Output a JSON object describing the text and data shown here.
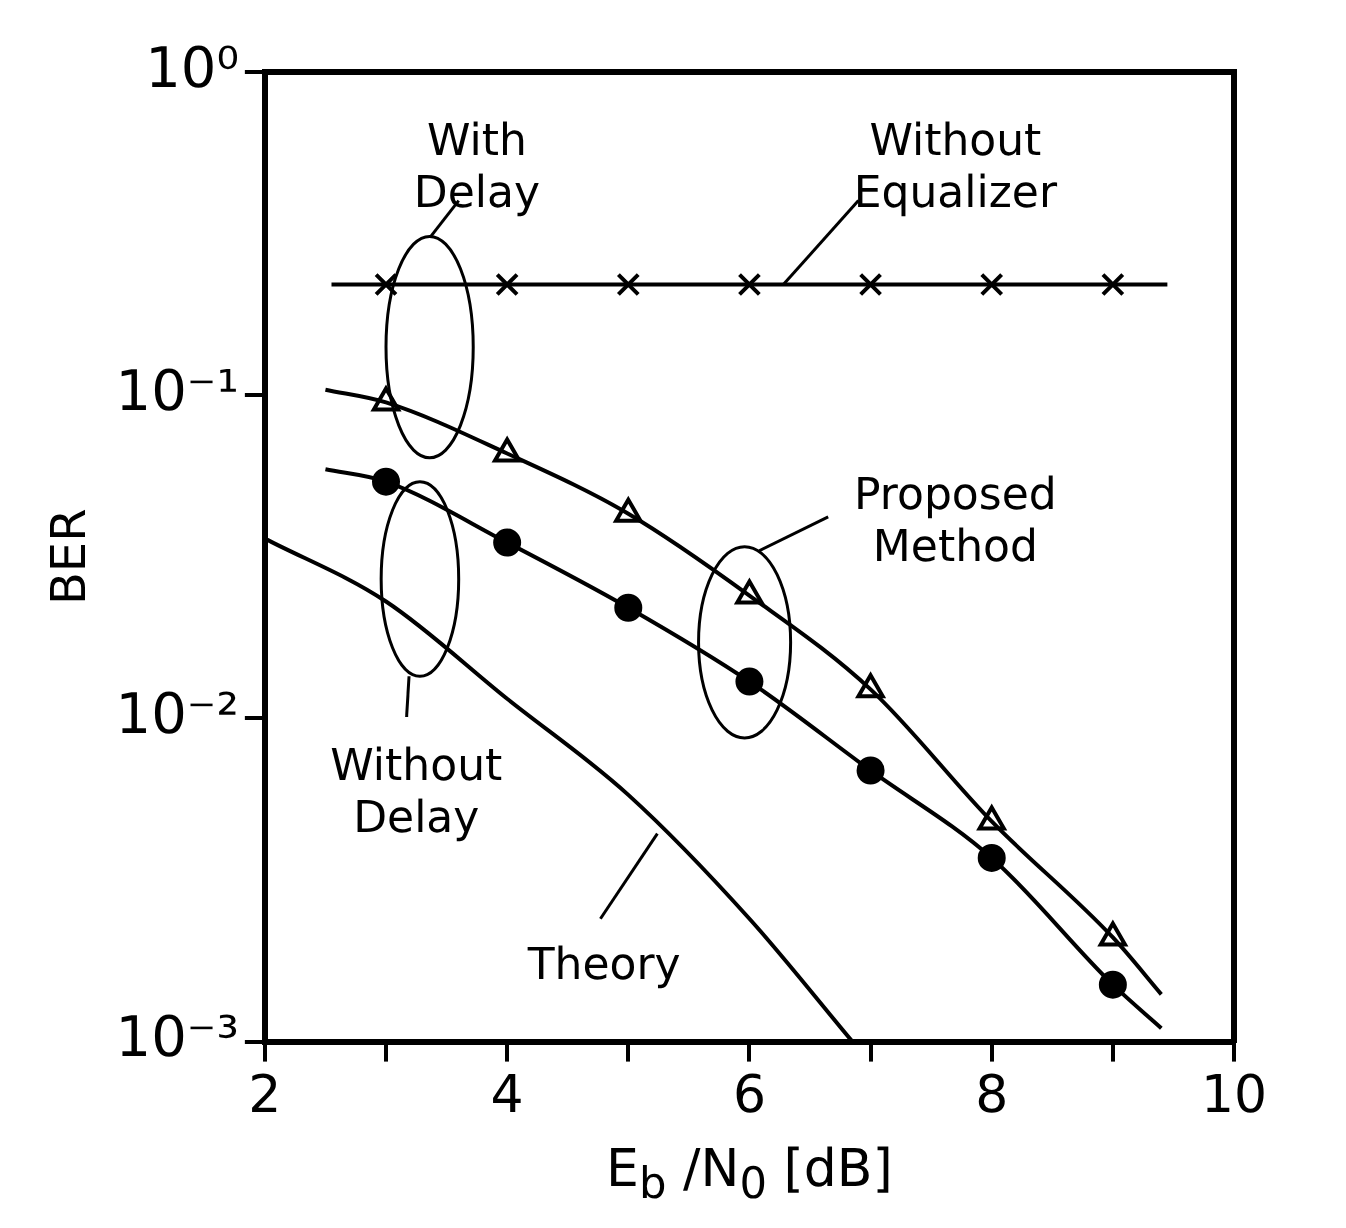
{
  "chart_data": {
    "type": "line",
    "xlabel": "E$_{b}$ /N$_{0}$  [dB]",
    "ylabel": "BER",
    "log": "y",
    "grid": false,
    "legend": false,
    "xlim": [
      2,
      10
    ],
    "xticks": [
      2,
      {
        "value": 3,
        "label": null
      },
      4,
      {
        "value": 5,
        "label": null
      },
      6,
      {
        "value": 7,
        "label": null
      },
      8,
      {
        "value": 9,
        "label": null
      },
      10
    ],
    "ylim": [
      0.001,
      1
    ],
    "yticks": [
      {
        "value": 1,
        "label": "10⁰"
      },
      {
        "value": 0.1,
        "label": "10⁻¹"
      },
      {
        "value": 0.01,
        "label": "10⁻²"
      },
      {
        "value": 0.001,
        "label": "10⁻³"
      }
    ],
    "series": [
      {
        "color": "#000000",
        "marker": "none",
        "x": [
          2.55,
          9.45
        ],
        "values": [
          0.22,
          0.22
        ]
      },
      {
        "type": "scatter",
        "color": "#000000",
        "marker": "cross",
        "x": [
          3,
          4,
          5,
          6,
          7,
          8,
          9
        ],
        "values": [
          0.22,
          0.22,
          0.22,
          0.22,
          0.22,
          0.22,
          0.22
        ]
      },
      {
        "color": "#000000",
        "marker": "none",
        "x": [
          2.5,
          3,
          4,
          5,
          6,
          7,
          8,
          9,
          9.4
        ],
        "values": [
          0.104,
          0.095,
          0.066,
          0.043,
          0.024,
          0.0123,
          0.0048,
          0.0021,
          0.0014
        ]
      },
      {
        "type": "scatter",
        "color": "#000000",
        "marker": "triangle",
        "x": [
          3,
          4,
          5,
          6,
          7,
          8,
          9
        ],
        "values": [
          0.095,
          0.066,
          0.043,
          0.024,
          0.0123,
          0.0048,
          0.0021
        ]
      },
      {
        "color": "#000000",
        "marker": "none",
        "x": [
          2.5,
          3,
          4,
          5,
          6,
          7,
          8,
          9,
          9.4
        ],
        "values": [
          0.059,
          0.054,
          0.035,
          0.022,
          0.013,
          0.0069,
          0.0037,
          0.0015,
          0.0011
        ]
      },
      {
        "type": "scatter",
        "color": "#000000",
        "marker": "circle",
        "x": [
          3,
          4,
          5,
          6,
          7,
          8,
          9
        ],
        "values": [
          0.054,
          0.035,
          0.022,
          0.013,
          0.0069,
          0.0037,
          0.0015
        ]
      },
      {
        "color": "#000000",
        "marker": "none",
        "x": [
          2,
          3,
          4,
          5,
          6,
          6.85
        ],
        "values": [
          0.036,
          0.023,
          0.0115,
          0.0058,
          0.0024,
          0.001
        ]
      }
    ],
    "annotations": [
      "With\nDelay",
      {
        "text": "Without\nEqualizer",
        "x": 6.28,
        "y": 0.22
      },
      "Proposed\nMethod",
      "Without\nDelay",
      {
        "text": "Theory",
        "x": 5.24,
        "y": 0.0044
      }
    ]
  }
}
